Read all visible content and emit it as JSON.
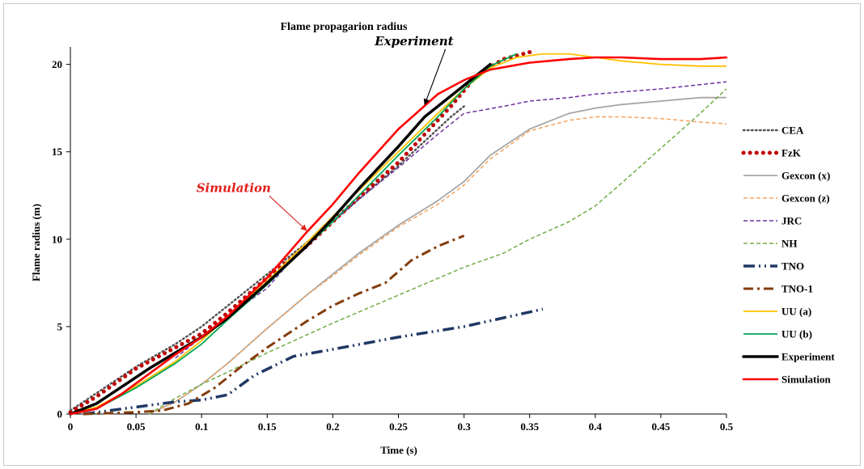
{
  "chart_data": {
    "type": "line",
    "title": "Flame propagarion radius",
    "xlabel": "Time (s)",
    "ylabel": "Flame radius (m)",
    "xlim": [
      0,
      0.5
    ],
    "ylim": [
      0,
      21
    ],
    "xticks": [
      0,
      0.05,
      0.1,
      0.15,
      0.2,
      0.25,
      0.3,
      0.35,
      0.4,
      0.45,
      0.5
    ],
    "xtick_labels": [
      "0",
      "0.05",
      "0.1",
      "0.15",
      "0.2",
      "0.25",
      "0.3",
      "0.35",
      "0.4",
      "0.45",
      "0.5"
    ],
    "yticks": [
      0,
      5,
      10,
      15,
      20
    ],
    "ytick_labels": [
      "0",
      "5",
      "10",
      "15",
      "20"
    ],
    "grid": false,
    "legend_position": "right",
    "annotations": [
      {
        "text": "Experiment",
        "color": "#000000",
        "x": 0.232,
        "y": 21.1,
        "arrow_to": [
          0.27,
          17.7
        ]
      },
      {
        "text": "Simulation",
        "color": "#e0201b",
        "x": 0.096,
        "y": 12.7,
        "arrow_to": [
          0.18,
          10.5
        ]
      }
    ],
    "series": [
      {
        "name": "CEA",
        "color": "#555555",
        "style": "dotted",
        "x": [
          0,
          0.02,
          0.05,
          0.08,
          0.1,
          0.12,
          0.15,
          0.18,
          0.2,
          0.22,
          0.25,
          0.27,
          0.29,
          0.3
        ],
        "y": [
          0.2,
          1.2,
          2.7,
          4.0,
          5.0,
          6.2,
          8.0,
          9.8,
          11.0,
          12.3,
          14.2,
          15.6,
          17.0,
          17.6
        ]
      },
      {
        "name": "FzK",
        "color": "#c00000",
        "style": "bigdots",
        "x": [
          0,
          0.02,
          0.05,
          0.08,
          0.1,
          0.12,
          0.15,
          0.18,
          0.2,
          0.22,
          0.25,
          0.27,
          0.29,
          0.31,
          0.33,
          0.35
        ],
        "y": [
          0.1,
          1.0,
          2.6,
          3.8,
          4.6,
          5.8,
          7.8,
          9.6,
          11.0,
          12.4,
          14.4,
          16.0,
          17.6,
          19.4,
          20.3,
          20.7
        ]
      },
      {
        "name": "Gexcon (x)",
        "color": "#a6a6a6",
        "style": "solid",
        "x": [
          0.06,
          0.08,
          0.1,
          0.12,
          0.15,
          0.18,
          0.2,
          0.22,
          0.25,
          0.28,
          0.3,
          0.32,
          0.35,
          0.38,
          0.4,
          0.42,
          0.45,
          0.48,
          0.5
        ],
        "y": [
          0,
          0.7,
          1.7,
          2.9,
          4.9,
          6.8,
          8.0,
          9.2,
          10.8,
          12.2,
          13.3,
          14.8,
          16.3,
          17.2,
          17.5,
          17.7,
          17.9,
          18.1,
          18.1
        ]
      },
      {
        "name": "Gexcon (z)",
        "color": "#f4a460",
        "style": "dashed",
        "x": [
          0.06,
          0.08,
          0.1,
          0.12,
          0.15,
          0.18,
          0.2,
          0.22,
          0.25,
          0.28,
          0.3,
          0.32,
          0.35,
          0.38,
          0.4,
          0.42,
          0.45,
          0.48,
          0.5
        ],
        "y": [
          0,
          0.7,
          1.7,
          2.9,
          4.9,
          6.8,
          7.9,
          9.1,
          10.7,
          12.0,
          13.1,
          14.6,
          16.2,
          16.8,
          17.0,
          17.0,
          16.9,
          16.7,
          16.6
        ]
      },
      {
        "name": "JRC",
        "color": "#7030a0",
        "style": "dashed",
        "x": [
          0.08,
          0.1,
          0.12,
          0.15,
          0.18,
          0.2,
          0.22,
          0.25,
          0.28,
          0.3,
          0.33,
          0.35,
          0.38,
          0.4,
          0.45,
          0.5
        ],
        "y": [
          3.2,
          4.4,
          5.6,
          7.2,
          9.8,
          11.0,
          12.3,
          14.1,
          16.0,
          17.2,
          17.6,
          17.9,
          18.1,
          18.3,
          18.6,
          19.0
        ]
      },
      {
        "name": "NH",
        "color": "#70ad47",
        "style": "dashed",
        "x": [
          0.06,
          0.08,
          0.1,
          0.12,
          0.15,
          0.2,
          0.25,
          0.3,
          0.33,
          0.35,
          0.38,
          0.4,
          0.42,
          0.45,
          0.48,
          0.5
        ],
        "y": [
          0,
          0.9,
          1.7,
          2.4,
          3.5,
          5.2,
          6.8,
          8.4,
          9.2,
          10.0,
          11.0,
          11.9,
          13.2,
          15.2,
          17.2,
          18.6
        ]
      },
      {
        "name": "TNO",
        "color": "#203864",
        "style": "dashdotdot",
        "x": [
          0.01,
          0.05,
          0.08,
          0.1,
          0.12,
          0.14,
          0.17,
          0.2,
          0.25,
          0.3,
          0.36
        ],
        "y": [
          0,
          0.4,
          0.7,
          0.8,
          1.1,
          2.2,
          3.3,
          3.7,
          4.4,
          5.0,
          6.0
        ]
      },
      {
        "name": "TNO-1",
        "color": "#843c0c",
        "style": "dashdot",
        "x": [
          0.01,
          0.05,
          0.07,
          0.09,
          0.11,
          0.13,
          0.15,
          0.18,
          0.2,
          0.22,
          0.24,
          0.26,
          0.28,
          0.3
        ],
        "y": [
          0,
          0.1,
          0.2,
          0.6,
          1.5,
          2.7,
          3.8,
          5.3,
          6.2,
          6.9,
          7.5,
          8.8,
          9.6,
          10.2
        ]
      },
      {
        "name": "UU (a)",
        "color": "#ffc000",
        "style": "solid",
        "x": [
          0,
          0.02,
          0.05,
          0.08,
          0.1,
          0.12,
          0.15,
          0.18,
          0.2,
          0.22,
          0.25,
          0.28,
          0.3,
          0.32,
          0.34,
          0.36,
          0.38,
          0.4,
          0.42,
          0.45,
          0.48,
          0.5
        ],
        "y": [
          0,
          0.4,
          1.6,
          3.0,
          4.2,
          5.6,
          7.6,
          9.8,
          11.3,
          12.8,
          15.0,
          17.2,
          18.6,
          19.8,
          20.4,
          20.6,
          20.6,
          20.4,
          20.2,
          20.0,
          19.9,
          19.9
        ]
      },
      {
        "name": "UU (b)",
        "color": "#00a651",
        "style": "solid",
        "x": [
          0,
          0.02,
          0.05,
          0.08,
          0.1,
          0.12,
          0.15,
          0.18,
          0.2,
          0.22,
          0.25,
          0.28,
          0.3,
          0.32,
          0.34
        ],
        "y": [
          0,
          0.3,
          1.5,
          2.9,
          4.0,
          5.4,
          7.4,
          9.6,
          11.0,
          12.5,
          14.8,
          17.0,
          18.6,
          19.9,
          20.6
        ]
      },
      {
        "name": "Experiment",
        "color": "#000000",
        "style": "thick",
        "x": [
          0,
          0.02,
          0.04,
          0.06,
          0.08,
          0.1,
          0.12,
          0.15,
          0.18,
          0.2,
          0.22,
          0.25,
          0.27,
          0.28,
          0.3,
          0.32
        ],
        "y": [
          0,
          0.6,
          1.6,
          2.6,
          3.5,
          4.4,
          5.5,
          7.5,
          9.6,
          11.2,
          12.9,
          15.3,
          17.0,
          17.6,
          18.8,
          20.0
        ]
      },
      {
        "name": "Simulation",
        "color": "#ff0000",
        "style": "solidmed",
        "x": [
          0,
          0.02,
          0.04,
          0.06,
          0.08,
          0.1,
          0.12,
          0.15,
          0.18,
          0.2,
          0.22,
          0.25,
          0.28,
          0.3,
          0.32,
          0.35,
          0.38,
          0.4,
          0.42,
          0.45,
          0.48,
          0.5
        ],
        "y": [
          0,
          0.3,
          1.2,
          2.3,
          3.4,
          4.4,
          5.6,
          7.8,
          10.4,
          12.0,
          13.8,
          16.3,
          18.3,
          19.1,
          19.7,
          20.1,
          20.3,
          20.4,
          20.4,
          20.3,
          20.3,
          20.4
        ]
      }
    ]
  }
}
